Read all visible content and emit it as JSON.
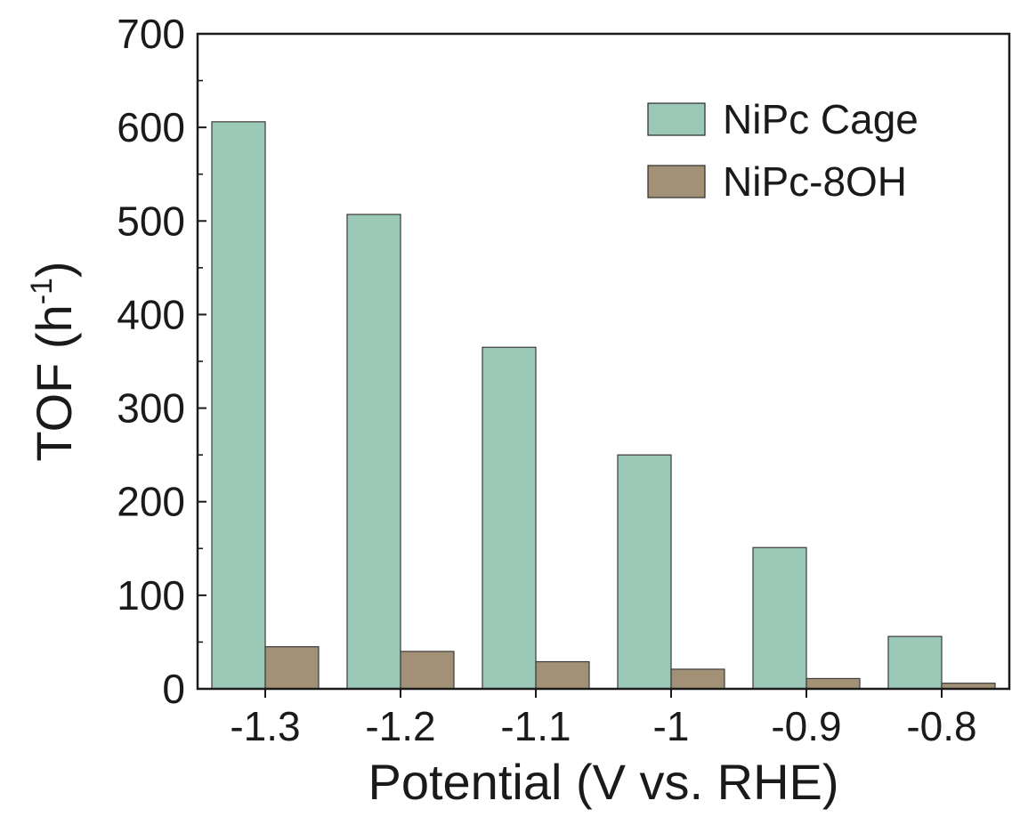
{
  "chart_data": {
    "type": "bar",
    "title": "",
    "xlabel": "Potential (V vs. RHE)",
    "ylabel_main": "TOF (h",
    "ylabel_sup": "-1",
    "ylabel_close": ")",
    "categories": [
      "-1.3",
      "-1.2",
      "-1.1",
      "-1",
      "-0.9",
      "-0.8"
    ],
    "series": [
      {
        "name": "NiPc Cage",
        "color": "#9cc9b7",
        "values": [
          606,
          507,
          365,
          250,
          151,
          56
        ]
      },
      {
        "name": "NiPc-8OH",
        "color": "#a29176",
        "values": [
          45,
          40,
          29,
          21,
          11,
          6
        ]
      }
    ],
    "ylim": [
      0,
      700
    ],
    "yticks": [
      0,
      100,
      200,
      300,
      400,
      500,
      600,
      700
    ],
    "ytick_labels": [
      "0",
      "100",
      "200",
      "300",
      "400",
      "500",
      "600",
      "700"
    ],
    "legend_position": "top-right",
    "grid": false
  }
}
